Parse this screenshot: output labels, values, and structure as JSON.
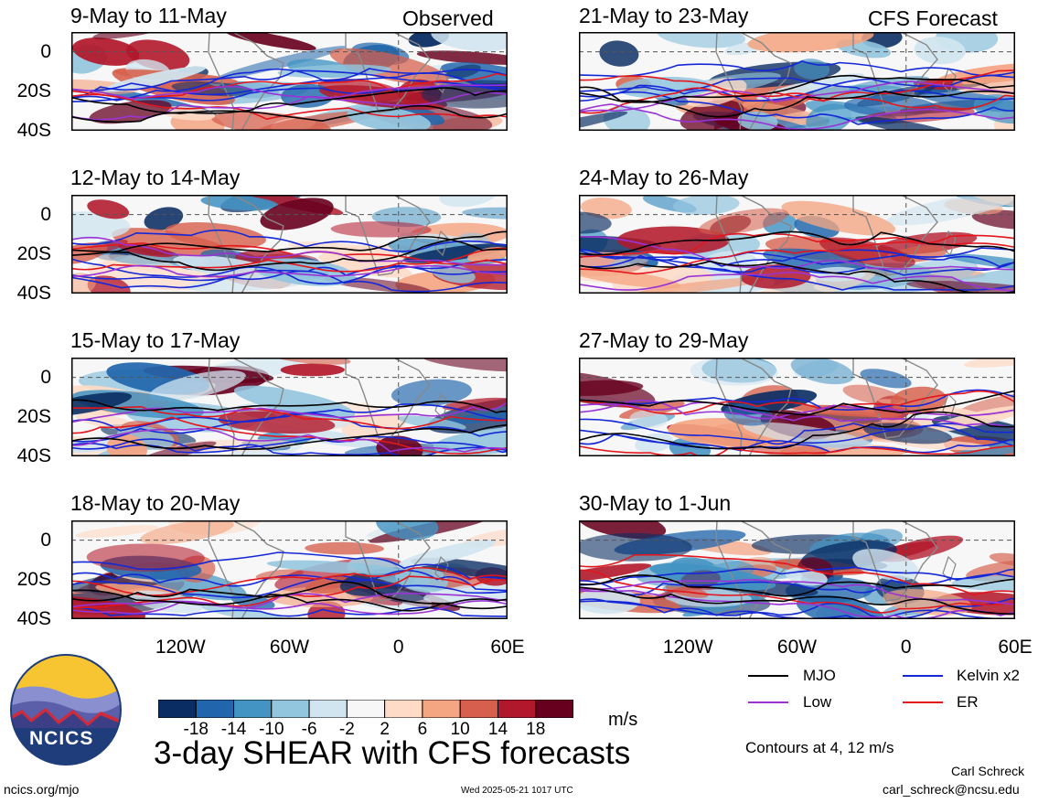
{
  "colors": {
    "cmap": [
      "#0a2d63",
      "#2166ac",
      "#4393c3",
      "#92c5de",
      "#d1e5f0",
      "#f7f7f7",
      "#fddbc7",
      "#f4a582",
      "#d6604d",
      "#b2182b",
      "#67001f"
    ],
    "mjo": "#000000",
    "kelvin": "#1428d8",
    "low": "#9a33d6",
    "er": "#e3161c",
    "land": "#888888",
    "logo_sky": "#f6c531",
    "logo_hill": "#5b5faa"
  },
  "headers": {
    "observed": "Observed",
    "forecast": "CFS Forecast"
  },
  "axes": {
    "y_ticks": [
      "0",
      "20S",
      "40S"
    ],
    "x_ticks": [
      "120W",
      "60W",
      "0",
      "60E"
    ]
  },
  "chart_data": [
    {
      "type": "heatmap",
      "title": "9-May to 11-May",
      "column": "Observed",
      "xlim": [
        -180,
        60
      ],
      "ylim": [
        -40,
        10
      ]
    },
    {
      "type": "heatmap",
      "title": "12-May to 14-May",
      "column": "Observed",
      "xlim": [
        -180,
        60
      ],
      "ylim": [
        -40,
        10
      ]
    },
    {
      "type": "heatmap",
      "title": "15-May to 17-May",
      "column": "Observed",
      "xlim": [
        -180,
        60
      ],
      "ylim": [
        -40,
        10
      ]
    },
    {
      "type": "heatmap",
      "title": "18-May to 20-May",
      "column": "Observed",
      "xlim": [
        -180,
        60
      ],
      "ylim": [
        -40,
        10
      ]
    },
    {
      "type": "heatmap",
      "title": "21-May to 23-May",
      "column": "CFS Forecast",
      "xlim": [
        -180,
        60
      ],
      "ylim": [
        -40,
        10
      ]
    },
    {
      "type": "heatmap",
      "title": "24-May to 26-May",
      "column": "CFS Forecast",
      "xlim": [
        -180,
        60
      ],
      "ylim": [
        -40,
        10
      ]
    },
    {
      "type": "heatmap",
      "title": "27-May to 29-May",
      "column": "CFS Forecast",
      "xlim": [
        -180,
        60
      ],
      "ylim": [
        -40,
        10
      ]
    },
    {
      "type": "heatmap",
      "title": "30-May to 1-Jun",
      "column": "CFS Forecast",
      "xlim": [
        -180,
        60
      ],
      "ylim": [
        -40,
        10
      ]
    }
  ],
  "colorbar": {
    "ticks": [
      "-18",
      "-14",
      "-10",
      "-6",
      "-2",
      "2",
      "6",
      "10",
      "14",
      "18"
    ],
    "units": "m/s"
  },
  "legend": {
    "items": [
      {
        "label": "MJO",
        "color": "#000000"
      },
      {
        "label": "Kelvin x2",
        "color": "#1428d8"
      },
      {
        "label": "Low",
        "color": "#9a33d6"
      },
      {
        "label": "ER",
        "color": "#e3161c"
      }
    ],
    "contours": "Contours at 4, 12 m/s"
  },
  "footer": {
    "title": "3-day SHEAR with CFS forecasts",
    "logo_text": "NCICS",
    "site": "ncics.org/mjo",
    "timestamp": "Wed 2025-05-21 1017 UTC",
    "author": "Carl Schreck",
    "email": "carl_schreck@ncsu.edu"
  }
}
